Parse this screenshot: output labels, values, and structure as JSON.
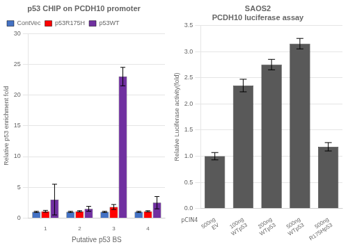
{
  "chart_data": [
    {
      "type": "bar",
      "title": "p53 CHIP on PCDH10 promoter",
      "xlabel": "Putative p53 BS",
      "ylabel": "Relative p53 enrichment fold",
      "categories": [
        "1",
        "2",
        "3",
        "4"
      ],
      "series": [
        {
          "name": "ContVec",
          "color": "#4472C4",
          "values": [
            1.0,
            1.0,
            1.0,
            1.0
          ],
          "errors": [
            0.1,
            0.1,
            0.1,
            0.1
          ]
        },
        {
          "name": "p53R175H",
          "color": "#FF0000",
          "values": [
            1.1,
            1.1,
            1.8,
            1.1
          ],
          "errors": [
            0.15,
            0.1,
            0.4,
            0.1
          ]
        },
        {
          "name": "p53WT",
          "color": "#7030A0",
          "values": [
            3.0,
            1.5,
            23.0,
            2.5
          ],
          "errors": [
            2.5,
            0.4,
            1.5,
            1.0
          ]
        }
      ],
      "ylim": [
        0,
        30
      ],
      "yticks": [
        0,
        5,
        10,
        15,
        20,
        25,
        30
      ],
      "grid": true,
      "legend": "upper left"
    },
    {
      "type": "bar",
      "title": [
        "SAOS2",
        "PCDH10 luciferase assay"
      ],
      "ylabel": "Relative Luciferase activity(fold)",
      "categories": [
        [
          "500ng",
          "EV"
        ],
        [
          "100ng",
          "WTp53"
        ],
        [
          "200ng",
          "WTp53"
        ],
        [
          "500ng",
          "WTp53"
        ],
        [
          "500ng",
          "R175Hp53"
        ]
      ],
      "values": [
        1.0,
        2.35,
        2.75,
        3.15,
        1.18
      ],
      "errors": [
        0.07,
        0.12,
        0.1,
        0.1,
        0.08
      ],
      "color": "#595959",
      "ylim": [
        0,
        3.5
      ],
      "yticks": [
        {
          "value": 0,
          "label": "0.0"
        },
        0.5,
        {
          "value": 1.0,
          "label": "1.0"
        },
        1.5,
        {
          "value": 2.0,
          "label": "2.0"
        },
        2.5,
        {
          "value": 3.0,
          "label": "3.0"
        },
        3.5
      ],
      "grid": true,
      "annotations": [
        {
          "text": "pCIN4"
        }
      ]
    }
  ]
}
